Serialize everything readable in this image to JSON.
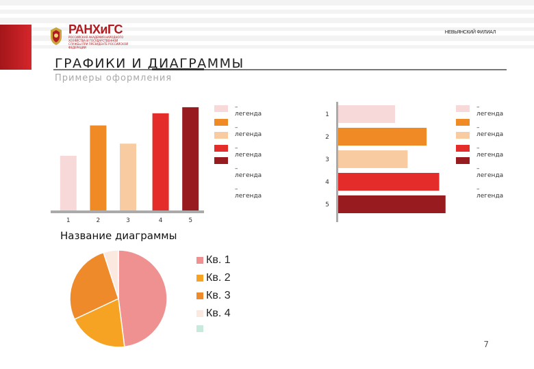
{
  "header": {
    "logo_title": "РАНХиГС",
    "logo_subtitle": "РОССИЙСКАЯ АКАДЕМИЯ НАРОДНОГО ХОЗЯЙСТВА И ГОСУДАРСТВЕННОЙ СЛУЖБЫ ПРИ ПРЕЗИДЕНТЕ РОССИЙСКОЙ ФЕДЕРАЦИИ",
    "branch": "НЕВЬЯНСКИЙ ФИЛИАЛ",
    "accent_color": "#b11a1f"
  },
  "page": {
    "title": "ГРАФИКИ И ДИАГРАММЫ",
    "subtitle": "Примеры оформления",
    "number": "7"
  },
  "colors": [
    "#f8d9d9",
    "#ef8a25",
    "#f8cba0",
    "#e42d2a",
    "#981b20"
  ],
  "chart_data": [
    {
      "type": "bar",
      "orientation": "vertical",
      "categories": [
        "1",
        "2",
        "3",
        "4",
        "5"
      ],
      "values": [
        45,
        70,
        55,
        80,
        85
      ],
      "ylim": [
        0,
        90
      ],
      "legend": {
        "placement": "right",
        "entries": [
          "–\nлегенда",
          "–\nлегенда",
          "–\nлегенда",
          "–\nлегенда",
          "–\nлегенда"
        ]
      }
    },
    {
      "type": "bar",
      "orientation": "horizontal",
      "categories": [
        "1",
        "2",
        "3",
        "4",
        "5"
      ],
      "values": [
        45,
        70,
        55,
        80,
        85
      ],
      "xlim": [
        0,
        90
      ],
      "legend": {
        "placement": "right",
        "entries": [
          "–\nлегенда",
          "–\nлегенда",
          "–\nлегенда",
          "–\nлегенда",
          "–\nлегенда"
        ]
      }
    },
    {
      "type": "pie",
      "title": "Название диаграммы",
      "categories": [
        "Кв. 1",
        "Кв. 2",
        "Кв. 3",
        "Кв. 4",
        ""
      ],
      "values": [
        48,
        20,
        27,
        5,
        0
      ],
      "colors": [
        "#f09191",
        "#f6a323",
        "#ef8a2b",
        "#fbe9df",
        "#c8eadd"
      ],
      "legend": {
        "placement": "right"
      }
    }
  ]
}
